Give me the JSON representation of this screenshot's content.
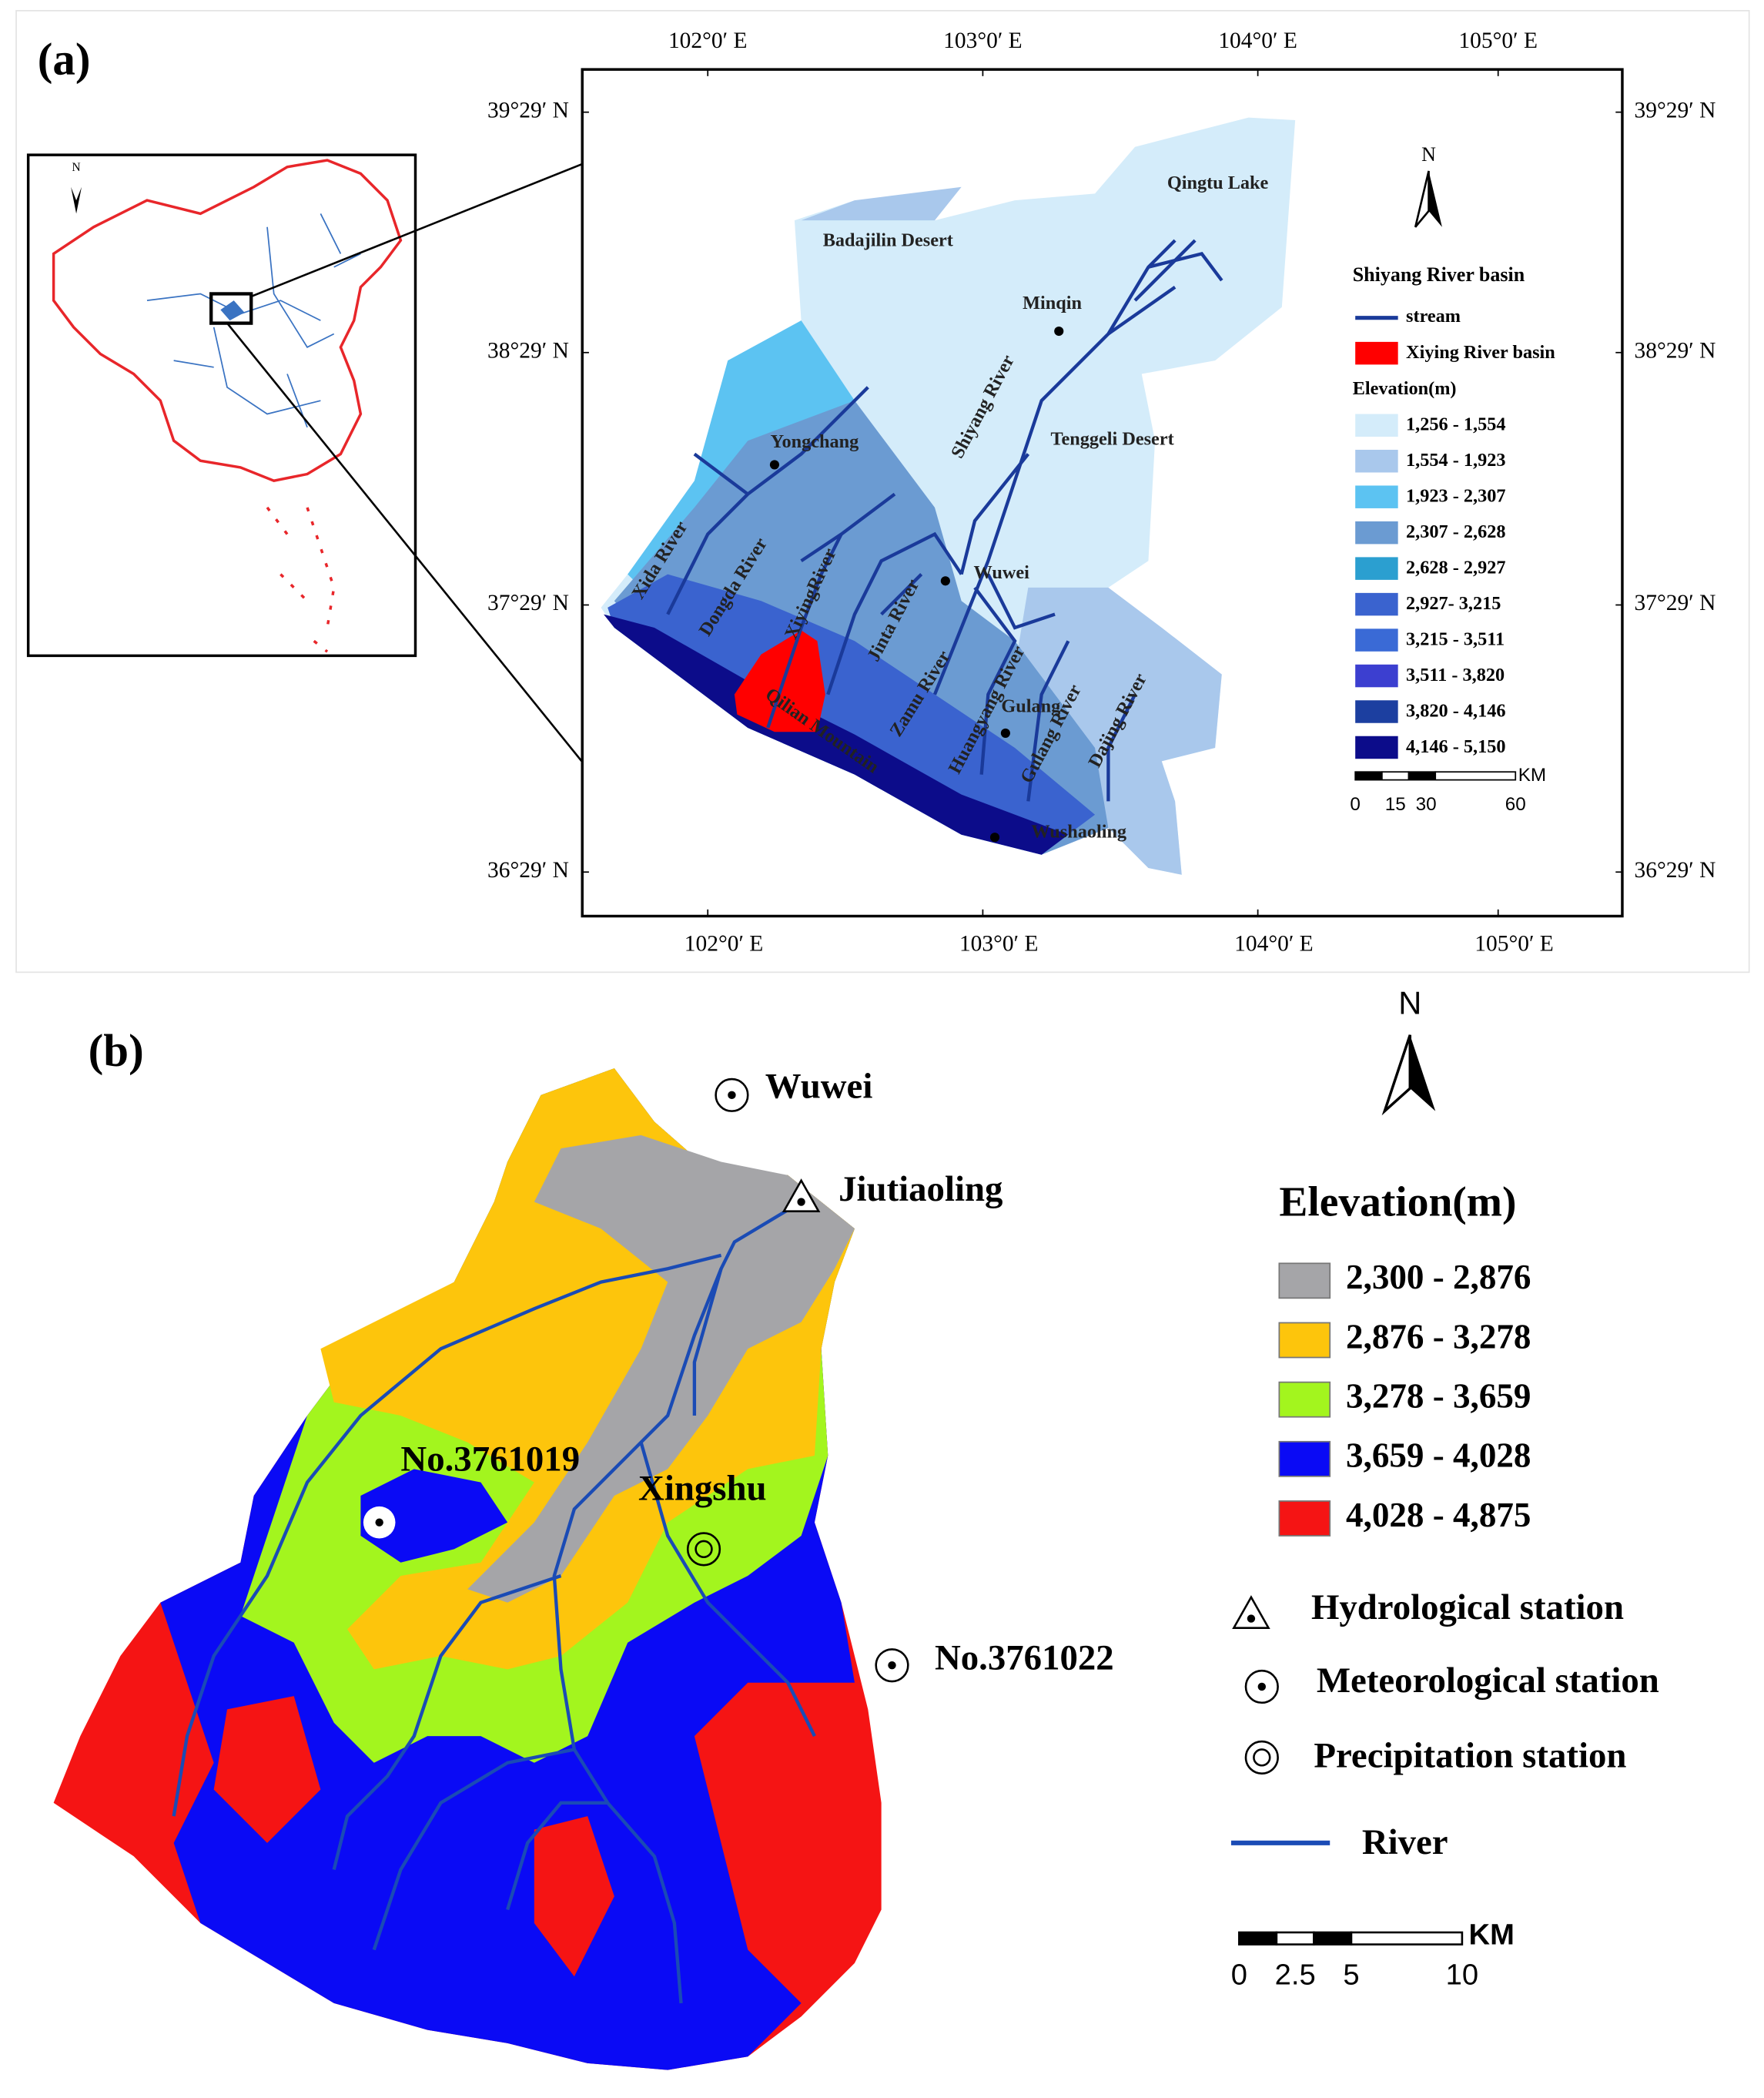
{
  "panel_a": {
    "label": "(a)",
    "lon_labels": [
      "102°0′ E",
      "103°0′ E",
      "104°0′ E",
      "105°0′ E"
    ],
    "lat_labels": [
      "39°29′ N",
      "38°29′ N",
      "37°29′ N",
      "36°29′ N"
    ],
    "places": [
      "Qingtu Lake",
      "Badajilin Desert",
      "Minqin",
      "Shiyang River",
      "Tenggeli Desert",
      "Yongchang",
      "Wuwei",
      "Xida River",
      "Dongda River",
      "XiyingRiver",
      "Jinta River",
      "Zamu River",
      "Huangyang River",
      "Gulang",
      "Gulang River",
      "Dajing River",
      "Qilian Mountain",
      "Wushaoling"
    ],
    "north": "N",
    "legend": {
      "title": "Shiyang River basin",
      "stream": "stream",
      "subbasin": "Xiying River basin",
      "elevation_title": "Elevation(m)",
      "classes": [
        {
          "label": "1,256 - 1,554",
          "color": "#d4ecfa"
        },
        {
          "label": "1,554 - 1,923",
          "color": "#a9c8ec"
        },
        {
          "label": "1,923 - 2,307",
          "color": "#5cc3f2"
        },
        {
          "label": "2,307 - 2,628",
          "color": "#6b9bd2"
        },
        {
          "label": "2,628 - 2,927",
          "color": "#2b9fd0"
        },
        {
          "label": "2,927- 3,215",
          "color": "#3a63cf"
        },
        {
          "label": "3,215 - 3,511",
          "color": "#3a6ad6"
        },
        {
          "label": "3,511 - 3,820",
          "color": "#3c3fd0"
        },
        {
          "label": "3,820 - 4,146",
          "color": "#1c3fa0"
        },
        {
          "label": "4,146 - 5,150",
          "color": "#0c0c8a"
        }
      ],
      "scale_unit": "KM",
      "scale_ticks": [
        "0",
        "15",
        "30",
        "60"
      ]
    }
  },
  "panel_b": {
    "label": "(b)",
    "stations": [
      "Wuwei",
      "Jiutiaoling",
      "No.3761019",
      "Xingshu",
      "No.3761022"
    ],
    "north": "N",
    "legend": {
      "elevation_title": "Elevation(m)",
      "classes": [
        {
          "label": "2,300 - 2,876",
          "color": "#a5a5a8"
        },
        {
          "label": "2,876 - 3,278",
          "color": "#fdc50c"
        },
        {
          "label": "3,278 - 3,659",
          "color": "#a3f51e"
        },
        {
          "label": "3,659 - 4,028",
          "color": "#0a0af5"
        },
        {
          "label": "4,028 - 4,875",
          "color": "#f51414"
        }
      ],
      "symbols": [
        "Hydrological station",
        "Meteorological station",
        "Precipitation station"
      ],
      "river": "River",
      "scale_unit": "KM",
      "scale_ticks": [
        "0",
        "2.5",
        "5",
        "10"
      ]
    }
  }
}
